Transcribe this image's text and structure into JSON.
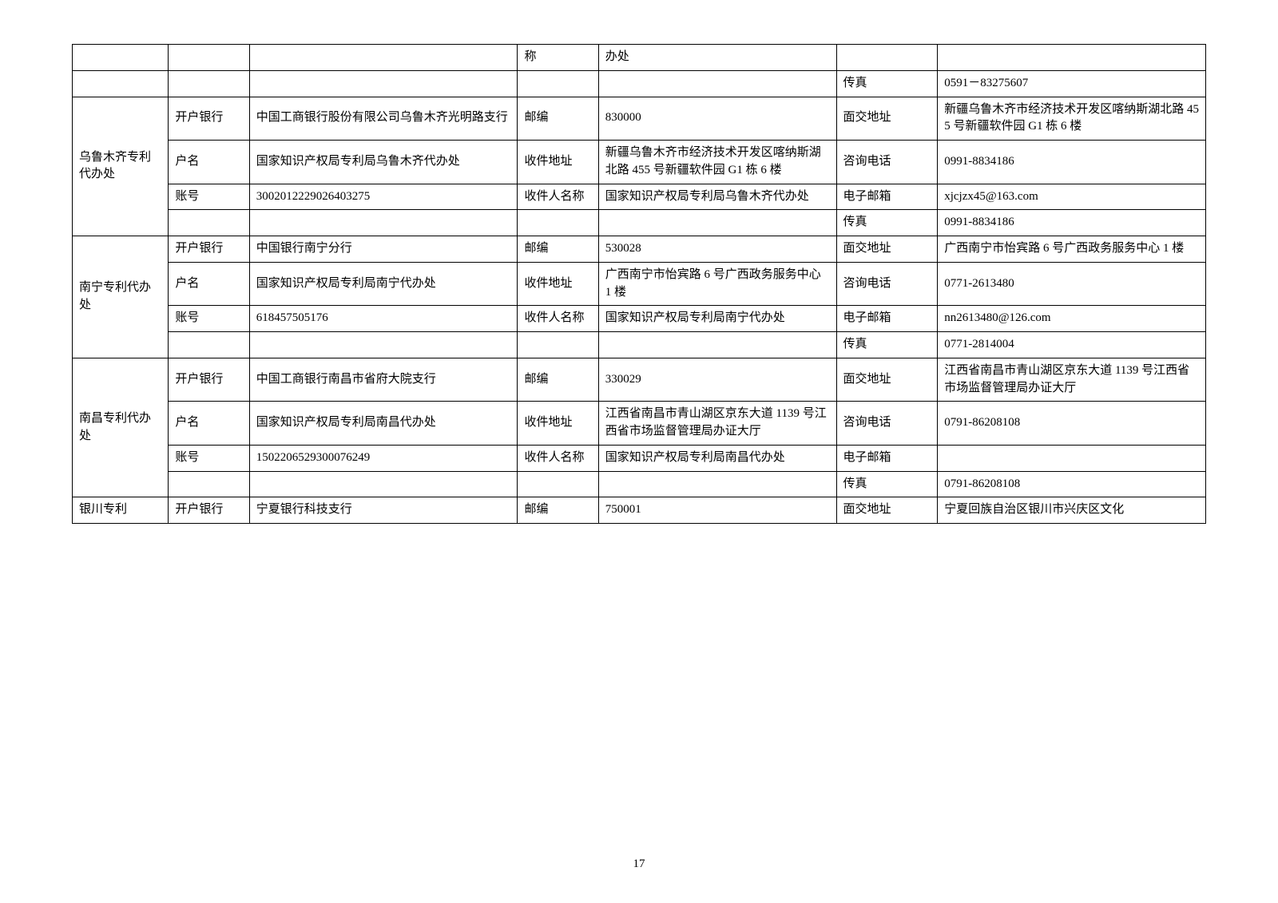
{
  "pageNumber": "17",
  "labels": {
    "openBank": "开户银行",
    "acctName": "户名",
    "acctNo": "账号",
    "postcode": "邮编",
    "mailAddr": "收件地址",
    "recipient": "收件人名称",
    "visitAddr": "面交地址",
    "phone": "咨询电话",
    "email": "电子邮箱",
    "fax": "传真",
    "recipientShort": "称",
    "officeShort": "办处"
  },
  "row0": {
    "fax": "0591－83275607"
  },
  "urumqi": {
    "office": "乌鲁木齐专利代办处",
    "openBank": "中国工商银行股份有限公司乌鲁木齐光明路支行",
    "postcode": "830000",
    "visitAddr": "新疆乌鲁木齐市经济技术开发区喀纳斯湖北路 455 号新疆软件园 G1 栋 6 楼",
    "acctName": "国家知识产权局专利局乌鲁木齐代办处",
    "mailAddr": "新疆乌鲁木齐市经济技术开发区喀纳斯湖北路 455 号新疆软件园 G1 栋 6 楼",
    "phone": "0991-8834186",
    "acctNo": "3002012229026403275",
    "recipient": "国家知识产权局专利局乌鲁木齐代办处",
    "email": "xjcjzx45@163.com",
    "fax": "0991-8834186"
  },
  "nanning": {
    "office": "南宁专利代办处",
    "openBank": "中国银行南宁分行",
    "postcode": "530028",
    "visitAddr": "广西南宁市怡宾路 6 号广西政务服务中心 1 楼",
    "acctName": "国家知识产权局专利局南宁代办处",
    "mailAddr": "广西南宁市怡宾路 6 号广西政务服务中心 1 楼",
    "phone": "0771-2613480",
    "acctNo": "618457505176",
    "recipient": "国家知识产权局专利局南宁代办处",
    "email": "nn2613480@126.com",
    "fax": "0771-2814004"
  },
  "nanchang": {
    "office": "南昌专利代办处",
    "openBank": "中国工商银行南昌市省府大院支行",
    "postcode": "330029",
    "visitAddr": "江西省南昌市青山湖区京东大道 1139 号江西省市场监督管理局办证大厅",
    "acctName": "国家知识产权局专利局南昌代办处",
    "mailAddr": "江西省南昌市青山湖区京东大道 1139 号江西省市场监督管理局办证大厅",
    "phone": "0791-86208108",
    "acctNo": "1502206529300076249",
    "recipient": "国家知识产权局专利局南昌代办处",
    "email": "",
    "fax": "0791-86208108"
  },
  "yinchuan": {
    "office": "银川专利",
    "openBank": "宁夏银行科技支行",
    "postcode": "750001",
    "visitAddr": "宁夏回族自治区银川市兴庆区文化"
  }
}
